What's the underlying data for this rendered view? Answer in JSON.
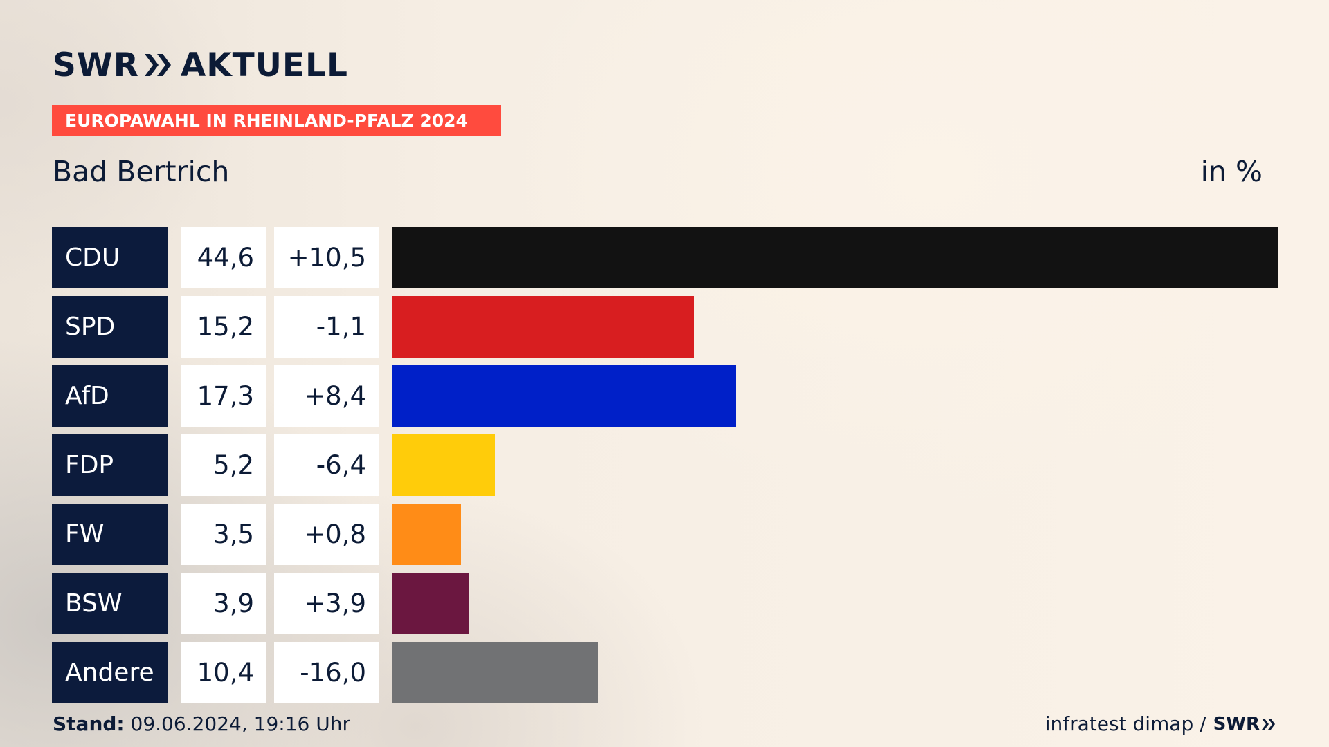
{
  "header": {
    "logo_left": "SWR",
    "logo_right": "AKTUELL",
    "tag": "EUROPAWAHL IN RHEINLAND-PFALZ 2024",
    "place": "Bad Bertrich",
    "unit": "in %"
  },
  "footer": {
    "stand_label": "Stand:",
    "stand_value": "09.06.2024, 19:16 Uhr",
    "source": "infratest dimap /",
    "source_logo": "SWR"
  },
  "chart_data": {
    "type": "bar",
    "orientation": "horizontal",
    "title": "Bad Bertrich",
    "unit": "in %",
    "categories": [
      "CDU",
      "SPD",
      "AfD",
      "FDP",
      "FW",
      "BSW",
      "Andere"
    ],
    "values": [
      44.6,
      15.2,
      17.3,
      5.2,
      3.5,
      3.9,
      10.4
    ],
    "value_labels": [
      "44,6",
      "15,2",
      "17,3",
      "5,2",
      "3,5",
      "3,9",
      "10,4"
    ],
    "diff_labels": [
      "+10,5",
      "-1,1",
      "+8,4",
      "-6,4",
      "+0,8",
      "+3,9",
      "-16,0"
    ],
    "colors": [
      "#121212",
      "#d81e20",
      "#0020c8",
      "#ffcc0a",
      "#ff8c17",
      "#6b1740",
      "#717274"
    ],
    "xlim": [
      0,
      44.6
    ]
  }
}
